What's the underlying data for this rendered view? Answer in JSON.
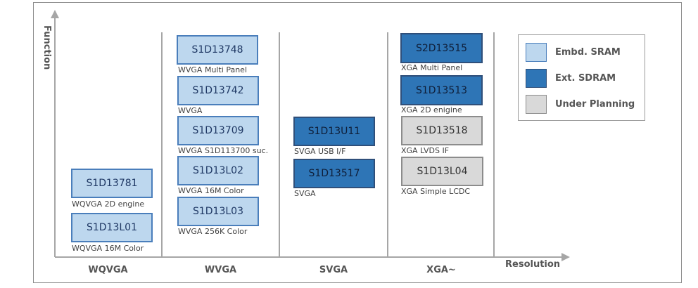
{
  "axes": {
    "y_label": "Function",
    "x_label": "Resolution"
  },
  "columns": [
    {
      "label": "WQVGA"
    },
    {
      "label": "WVGA"
    },
    {
      "label": "SVGA"
    },
    {
      "label": "XGA~"
    }
  ],
  "legend": {
    "items": [
      {
        "label": "Embd. SRAM",
        "type": "sram"
      },
      {
        "label": "Ext. SDRAM",
        "type": "sdram"
      },
      {
        "label": "Under Planning",
        "type": "plan"
      }
    ]
  },
  "chips": [
    {
      "name": "S1D13781",
      "caption": "WQVGA 2D engine",
      "type": "sram"
    },
    {
      "name": "S1D13L01",
      "caption": "WQVGA 16M Color",
      "type": "sram"
    },
    {
      "name": "S1D13748",
      "caption": "WVGA Multi Panel",
      "type": "sram"
    },
    {
      "name": "S1D13742",
      "caption": "WVGA",
      "type": "sram"
    },
    {
      "name": "S1D13709",
      "caption": "WVGA S1D113700 suc.",
      "type": "sram"
    },
    {
      "name": "S1D13L02",
      "caption": "WVGA 16M Color",
      "type": "sram"
    },
    {
      "name": "S1D13L03",
      "caption": "WVGA 256K Color",
      "type": "sram"
    },
    {
      "name": "S1D13U11",
      "caption": "SVGA USB I/F",
      "type": "sdram"
    },
    {
      "name": "S1D13517",
      "caption": "SVGA",
      "type": "sdram"
    },
    {
      "name": "S2D13515",
      "caption": "XGA Multi Panel",
      "type": "sdram"
    },
    {
      "name": "S1D13513",
      "caption": "XGA 2D enigine",
      "type": "sdram"
    },
    {
      "name": "S1D13518",
      "caption": "XGA LVDS IF",
      "type": "plan"
    },
    {
      "name": "S1D13L04",
      "caption": "XGA Simple LCDC",
      "type": "plan"
    }
  ],
  "colors": {
    "sram_fill": "#bdd7ee",
    "sdram_fill": "#2e75b6",
    "plan_fill": "#d9d9d9",
    "axis": "#a6a6a6"
  }
}
